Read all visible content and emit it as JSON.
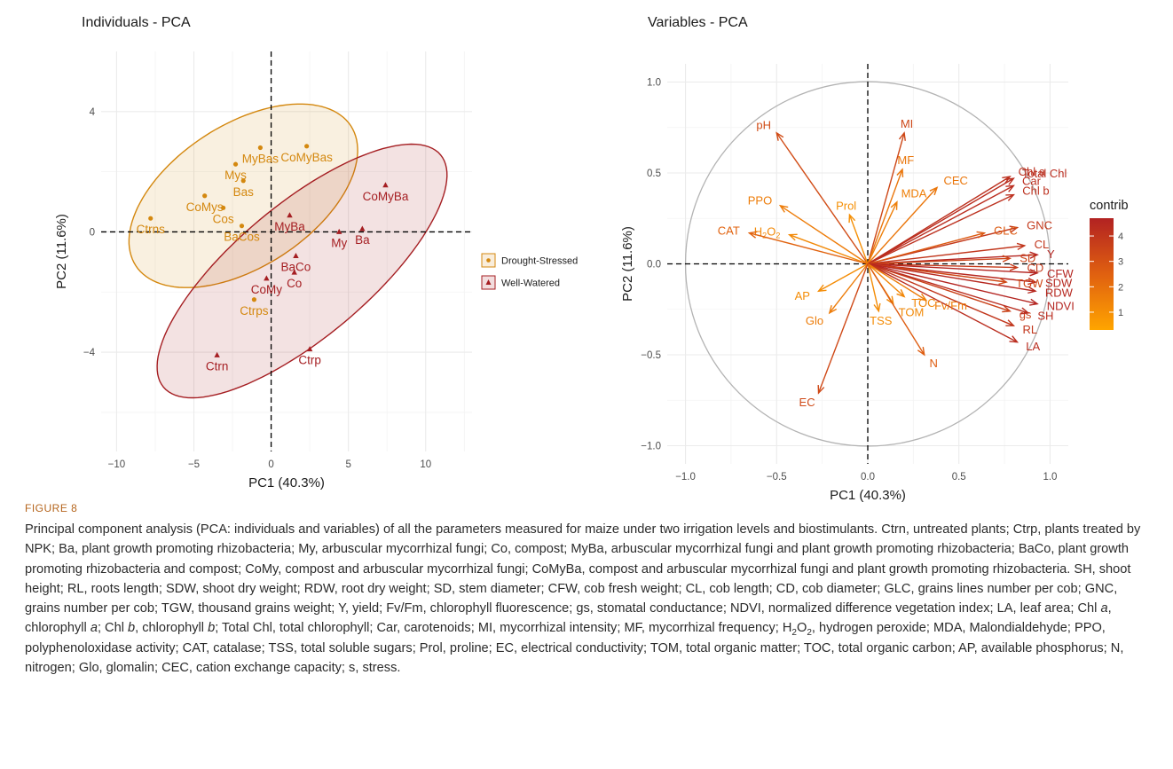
{
  "colors": {
    "drought": "#d4880f",
    "well": "#a51e22",
    "grid": "#ebebeb",
    "circle": "#b3b3b3"
  },
  "figure_label": "FIGURE 8",
  "caption_html": "Principal component analysis (PCA: individuals and variables) of all the parameters measured for maize under two irrigation levels and biostimulants. Ctrn, untreated plants; Ctrp, plants treated by NPK; Ba, plant growth promoting rhizobacteria; My, arbuscular mycorrhizal fungi; Co, compost; MyBa, arbuscular mycorrhizal fungi and plant growth promoting rhizobacteria; BaCo, plant growth promoting rhizobacteria and compost; CoMy, compost and arbuscular mycorrhizal fungi; CoMyBa, compost and arbuscular mycorrhizal fungi and plant growth promoting rhizobacteria. SH, shoot height; RL, roots length; SDW, shoot dry weight; RDW, root dry weight; SD, stem diameter; CFW, cob fresh weight; CL, cob length; CD, cob diameter; GLC, grains lines number per cob; GNC, grains number per cob; TGW, thousand grains weight; Y, yield; Fv/Fm, chlorophyll fluorescence; gs, stomatal conductance; NDVI, normalized difference vegetation index; LA, leaf area; Chl <i>a</i>, chlorophyll <i>a</i>; Chl <i>b</i>, chlorophyll <i>b</i>; Total Chl, total chlorophyll; Car, carotenoids; MI, mycorrhizal intensity; MF, mycorrhizal frequency; H<sub>2</sub>O<sub>2</sub>, hydrogen peroxide; MDA, Malondialdehyde; PPO, polyphenoloxidase activity; CAT, catalase; TSS, total soluble sugars; Prol, proline; EC, electrical conductivity; TOM, total organic matter; TOC, total organic carbon; AP, available phosphorus; N, nitrogen; Glo, glomalin; CEC, cation exchange capacity; s, stress.",
  "chart_data": [
    {
      "type": "scatter",
      "title": "Individuals - PCA",
      "xlabel": "PC1 (40.3%)",
      "ylabel": "PC2 (11.6%)",
      "xlim": [
        -11,
        13
      ],
      "ylim": [
        -7.3,
        6
      ],
      "xticks": [
        -10,
        -5,
        0,
        5,
        10
      ],
      "yticks": [
        -4,
        0,
        4
      ],
      "grid": true,
      "legend_position": "right",
      "series": [
        {
          "name": "Drought-Stressed",
          "color": "#d4880f",
          "marker": "circle",
          "points": [
            {
              "label": "Ctrns",
              "x": -7.8,
              "y": 0.45
            },
            {
              "label": "CoMys",
              "x": -4.3,
              "y": 1.2
            },
            {
              "label": "Cos",
              "x": -3.1,
              "y": 0.8
            },
            {
              "label": "Mys",
              "x": -2.3,
              "y": 2.25
            },
            {
              "label": "Bas",
              "x": -1.8,
              "y": 1.7
            },
            {
              "label": "MyBas",
              "x": -0.7,
              "y": 2.8
            },
            {
              "label": "BaCos",
              "x": -1.9,
              "y": 0.2
            },
            {
              "label": "CoMyBas",
              "x": 2.3,
              "y": 2.85
            },
            {
              "label": "Ctrps",
              "x": -1.1,
              "y": -2.25
            }
          ],
          "ellipse": {
            "cx": -1.8,
            "cy": 1.2,
            "rx": 8.3,
            "ry": 4.6,
            "angle": 33
          }
        },
        {
          "name": "Well-Watered",
          "color": "#a51e22",
          "marker": "triangle",
          "points": [
            {
              "label": "CoMyBa",
              "x": 7.4,
              "y": 1.55
            },
            {
              "label": "MyBa",
              "x": 1.2,
              "y": 0.55
            },
            {
              "label": "My",
              "x": 4.4,
              "y": 0.0
            },
            {
              "label": "Ba",
              "x": 5.9,
              "y": 0.1
            },
            {
              "label": "BaCo",
              "x": 1.6,
              "y": -0.8
            },
            {
              "label": "Co",
              "x": 1.5,
              "y": -1.35
            },
            {
              "label": "CoMy",
              "x": -0.3,
              "y": -1.55
            },
            {
              "label": "Ctrp",
              "x": 2.5,
              "y": -3.9
            },
            {
              "label": "Ctrn",
              "x": -3.5,
              "y": -4.1
            }
          ],
          "ellipse": {
            "cx": 2.0,
            "cy": -1.3,
            "rx": 11.7,
            "ry": 4.3,
            "angle": 40
          }
        }
      ]
    },
    {
      "type": "vector",
      "title": "Variables - PCA",
      "xlabel": "PC1 (40.3%)",
      "ylabel": "PC2 (11.6%)",
      "xlim": [
        -1.1,
        1.1
      ],
      "ylim": [
        -1.1,
        1.1
      ],
      "xticks": [
        -1.0,
        -0.5,
        0.0,
        0.5,
        1.0
      ],
      "yticks": [
        -1.0,
        -0.5,
        0.0,
        0.5,
        1.0
      ],
      "grid": true,
      "legend_title": "contrib",
      "legend_ticks": [
        1,
        2,
        3,
        4
      ],
      "legend_range": [
        0.3,
        4.7
      ],
      "legend_colors": [
        "#ffa500",
        "#e06010",
        "#b22222"
      ],
      "variables": [
        {
          "name": "pH",
          "x": -0.5,
          "y": 0.72,
          "contrib": 3.2
        },
        {
          "name": "MI",
          "x": 0.2,
          "y": 0.72,
          "contrib": 3.4
        },
        {
          "name": "MF",
          "x": 0.19,
          "y": 0.52,
          "contrib": 1.8
        },
        {
          "name": "CEC",
          "x": 0.38,
          "y": 0.42,
          "contrib": 1.8
        },
        {
          "name": "MDA",
          "x": 0.16,
          "y": 0.34,
          "contrib": 1.5
        },
        {
          "name": "Prol",
          "x": -0.1,
          "y": 0.27,
          "contrib": 1.0
        },
        {
          "name": "PPO",
          "x": -0.48,
          "y": 0.32,
          "contrib": 1.6
        },
        {
          "name": "H2O2",
          "x": -0.43,
          "y": 0.16,
          "contrib": 1.2
        },
        {
          "name": "CAT",
          "x": -0.65,
          "y": 0.17,
          "contrib": 2.4
        },
        {
          "name": "Chl a",
          "x": 0.78,
          "y": 0.48,
          "contrib": 4.2
        },
        {
          "name": "Total Chl",
          "x": 0.8,
          "y": 0.47,
          "contrib": 4.3
        },
        {
          "name": "Car",
          "x": 0.8,
          "y": 0.43,
          "contrib": 4.3
        },
        {
          "name": "Chl b",
          "x": 0.8,
          "y": 0.38,
          "contrib": 4.2
        },
        {
          "name": "GNC",
          "x": 0.82,
          "y": 0.2,
          "contrib": 3.9
        },
        {
          "name": "GLC",
          "x": 0.64,
          "y": 0.17,
          "contrib": 2.7
        },
        {
          "name": "CL",
          "x": 0.86,
          "y": 0.1,
          "contrib": 4.0
        },
        {
          "name": "Y",
          "x": 0.93,
          "y": 0.05,
          "contrib": 4.6
        },
        {
          "name": "SD",
          "x": 0.78,
          "y": 0.03,
          "contrib": 3.5
        },
        {
          "name": "CD",
          "x": 0.82,
          "y": -0.02,
          "contrib": 3.8
        },
        {
          "name": "CFW",
          "x": 0.93,
          "y": -0.05,
          "contrib": 4.6
        },
        {
          "name": "SDW",
          "x": 0.92,
          "y": -0.1,
          "contrib": 4.5
        },
        {
          "name": "TGW",
          "x": 0.76,
          "y": -0.1,
          "contrib": 3.3
        },
        {
          "name": "RDW",
          "x": 0.92,
          "y": -0.15,
          "contrib": 4.5
        },
        {
          "name": "NDVI",
          "x": 0.93,
          "y": -0.22,
          "contrib": 4.6
        },
        {
          "name": "gs",
          "x": 0.78,
          "y": -0.26,
          "contrib": 3.6
        },
        {
          "name": "SH",
          "x": 0.88,
          "y": -0.27,
          "contrib": 4.3
        },
        {
          "name": "RL",
          "x": 0.8,
          "y": -0.34,
          "contrib": 4.0
        },
        {
          "name": "LA",
          "x": 0.82,
          "y": -0.43,
          "contrib": 4.3
        },
        {
          "name": "Fv/Fm",
          "x": 0.32,
          "y": -0.2,
          "contrib": 1.6
        },
        {
          "name": "TOC",
          "x": 0.2,
          "y": -0.18,
          "contrib": 1.3
        },
        {
          "name": "TOM",
          "x": 0.14,
          "y": -0.22,
          "contrib": 1.2
        },
        {
          "name": "TSS",
          "x": 0.06,
          "y": -0.26,
          "contrib": 1.1
        },
        {
          "name": "N",
          "x": 0.31,
          "y": -0.5,
          "contrib": 2.6
        },
        {
          "name": "AP",
          "x": -0.27,
          "y": -0.15,
          "contrib": 1.1
        },
        {
          "name": "Glo",
          "x": -0.21,
          "y": -0.27,
          "contrib": 1.6
        },
        {
          "name": "EC",
          "x": -0.27,
          "y": -0.71,
          "contrib": 3.3
        }
      ]
    }
  ]
}
